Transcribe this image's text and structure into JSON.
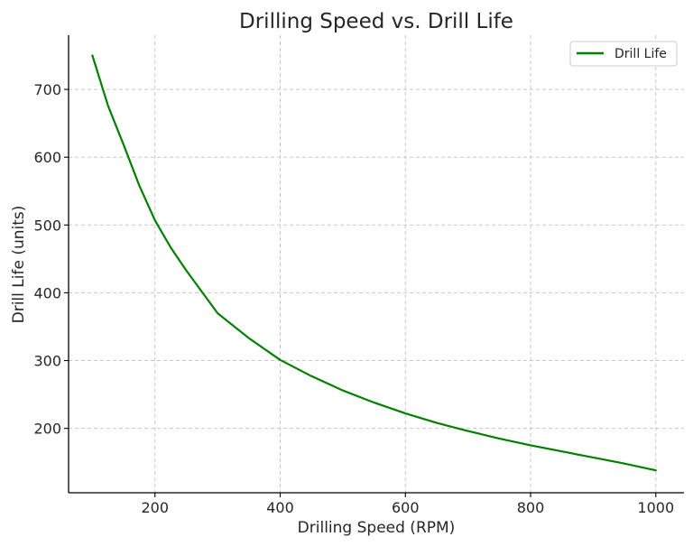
{
  "chart_data": {
    "type": "line",
    "title": "Drilling Speed vs. Drill Life",
    "xlabel": "Drilling Speed (RPM)",
    "ylabel": "Drill Life (units)",
    "xlim": [
      62,
      1045
    ],
    "ylim": [
      105,
      780
    ],
    "xticks": [
      200,
      400,
      600,
      800,
      1000
    ],
    "yticks": [
      200,
      300,
      400,
      500,
      600,
      700
    ],
    "grid": true,
    "legend_position": "top-right",
    "series": [
      {
        "name": "Drill Life",
        "color": "#008000",
        "x": [
          100,
          125,
          150,
          175,
          200,
          225,
          250,
          300,
          350,
          400,
          450,
          500,
          550,
          600,
          650,
          700,
          750,
          800,
          850,
          900,
          950,
          1000
        ],
        "y": [
          750,
          676,
          618,
          558,
          507,
          467,
          433,
          370,
          333,
          301,
          277,
          256,
          238,
          222,
          208,
          196,
          185,
          175,
          166,
          157,
          148,
          138
        ]
      }
    ]
  }
}
